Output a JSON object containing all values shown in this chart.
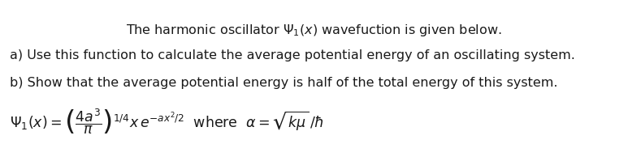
{
  "background_color": "#ffffff",
  "line1": "The harmonic oscillator $\\Psi_1(x)$ wavefuction is given below.",
  "line2": "a) Use this function to calculate the average potential energy of an oscillating system.",
  "line3": "b) Show that the average potential energy is half of the total energy of this system.",
  "line4_math": "$\\Psi_1(x) = \\left(\\dfrac{4a^3}{\\pi}\\right)^{1/4} x\\, e^{-ax^2/2}$  where  $\\alpha = \\sqrt{k\\mu}\\,/\\hbar$",
  "text_color": "#1a1a1a",
  "fontsize_body": 11.5,
  "fontsize_math": 12.5,
  "fig_width": 7.53,
  "fig_height": 1.52
}
